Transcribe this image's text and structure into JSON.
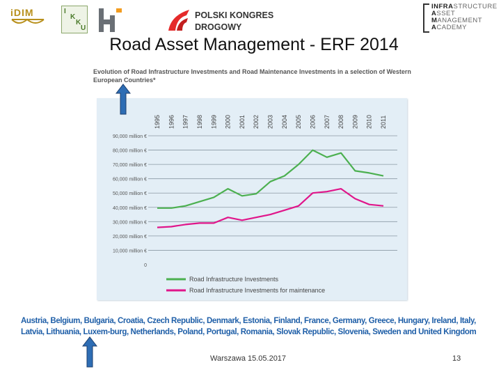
{
  "slide": {
    "title": "Road Asset Management - ERF 2014",
    "footer": "Warszawa 15.05.2017",
    "page_number": "13"
  },
  "logos": {
    "idim_text": "iDIM",
    "ikku_letters": [
      "I",
      "K",
      "K",
      "U"
    ],
    "pkd_line1": "POLSKI KONGRES",
    "pkd_line2": "DROGOWY",
    "iama_lines": [
      {
        "b": "INFRA",
        "r": "STRUCTURE"
      },
      {
        "b": "A",
        "r": "SSET"
      },
      {
        "b": "M",
        "r": "ANAGEMENT"
      },
      {
        "b": "A",
        "r": "CADEMY"
      }
    ]
  },
  "countries_note": "Austria, Belgium, Bulgaria, Croatia, Czech Republic, Denmark, Estonia, Finland, France, Germany, Greece, Hungary, Ireland, Italy, Latvia, Lithuania, Luxem-burg, Netherlands, Poland, Portugal, Romania, Slovak Republic, Slovenia, Sweden and United Kingdom",
  "colors": {
    "green": "#4cb050",
    "magenta": "#e0158a",
    "panel": "#e3eef6",
    "arrow": "#2e6db4"
  },
  "chart_data": {
    "type": "line",
    "title": "Evolution of Road Infrastructure Investments and Road Maintenance Investments in a selection of Western European Countries*",
    "categories": [
      "1995",
      "1996",
      "1997",
      "1998",
      "1999",
      "2000",
      "2001",
      "2002",
      "2003",
      "2004",
      "2005",
      "2006",
      "2007",
      "2008",
      "2009",
      "2010",
      "2011"
    ],
    "y_tick_labels": [
      "0",
      "10,000 million €",
      "20,000 million €",
      "30,000 million €",
      "40,000 million €",
      "50,000 million €",
      "60,000 million €",
      "70,000 million €",
      "80,000 million €",
      "90,000 million €"
    ],
    "y_ticks": [
      0,
      10000,
      20000,
      30000,
      40000,
      50000,
      60000,
      70000,
      80000,
      90000
    ],
    "ylim": [
      0,
      90000
    ],
    "series": [
      {
        "name": "Road Infrastructure Investments",
        "color": "#4cb050",
        "values": [
          39500,
          39500,
          41000,
          44000,
          47000,
          53000,
          48000,
          49500,
          58000,
          62000,
          70000,
          80000,
          75000,
          78000,
          65500,
          64000,
          62000
        ]
      },
      {
        "name": "Road Infrastructure Investments for maintenance",
        "color": "#e0158a",
        "values": [
          26000,
          26500,
          28000,
          29000,
          29000,
          33000,
          31000,
          33000,
          35000,
          38000,
          41000,
          50000,
          51000,
          53000,
          46000,
          42000,
          41000
        ]
      }
    ]
  }
}
